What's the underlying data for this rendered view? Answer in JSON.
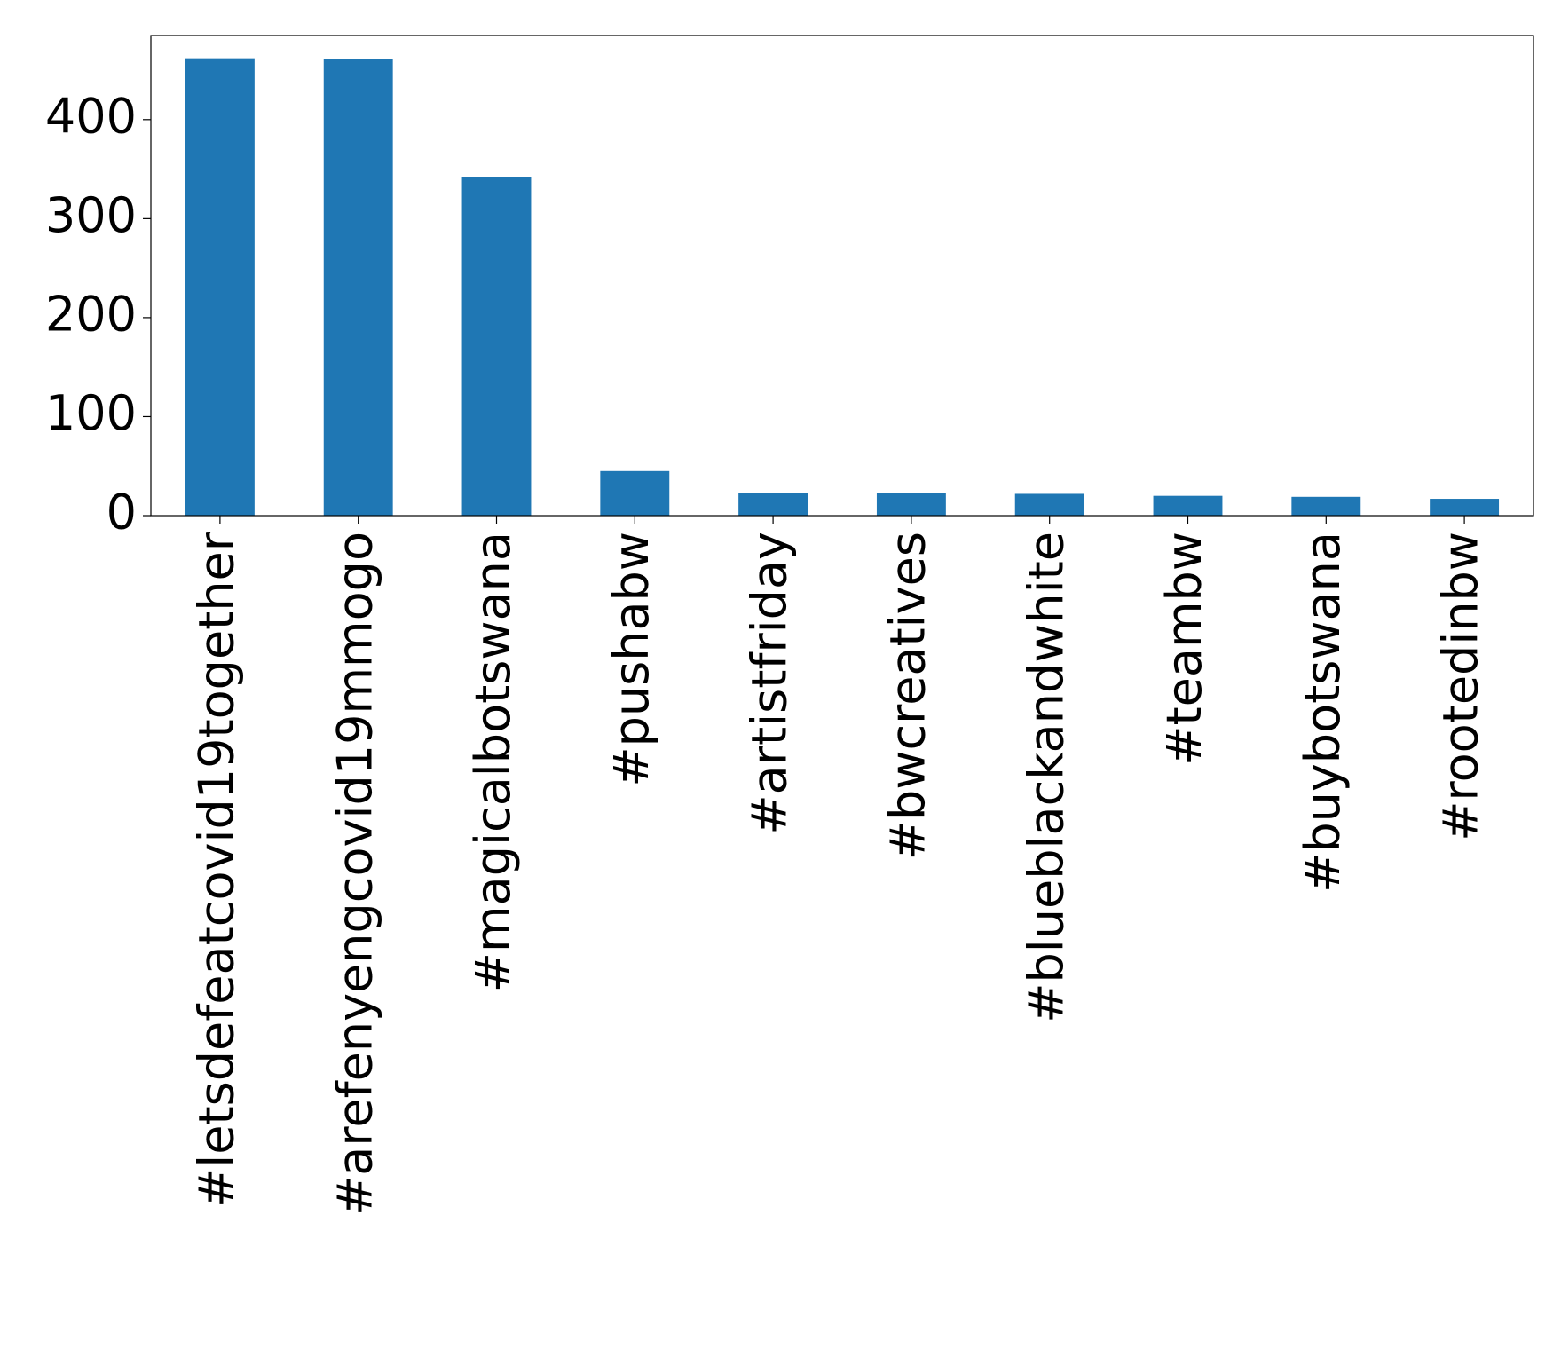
{
  "chart_data": {
    "type": "bar",
    "categories": [
      "#letsdefeatcovid19together",
      "#arefenyengcovid19mmogo",
      "#magicalbotswana",
      "#pushabw",
      "#artistfriday",
      "#bwcreatives",
      "#blueblackandwhite",
      "#teambw",
      "#buybotswana",
      "#rootedinbw"
    ],
    "values": [
      462,
      461,
      342,
      45,
      23,
      23,
      22,
      20,
      19,
      17
    ],
    "color": "#1f77b4",
    "ylim": [
      0,
      485
    ],
    "yticks": [
      0,
      100,
      200,
      300,
      400
    ],
    "grid": false
  }
}
